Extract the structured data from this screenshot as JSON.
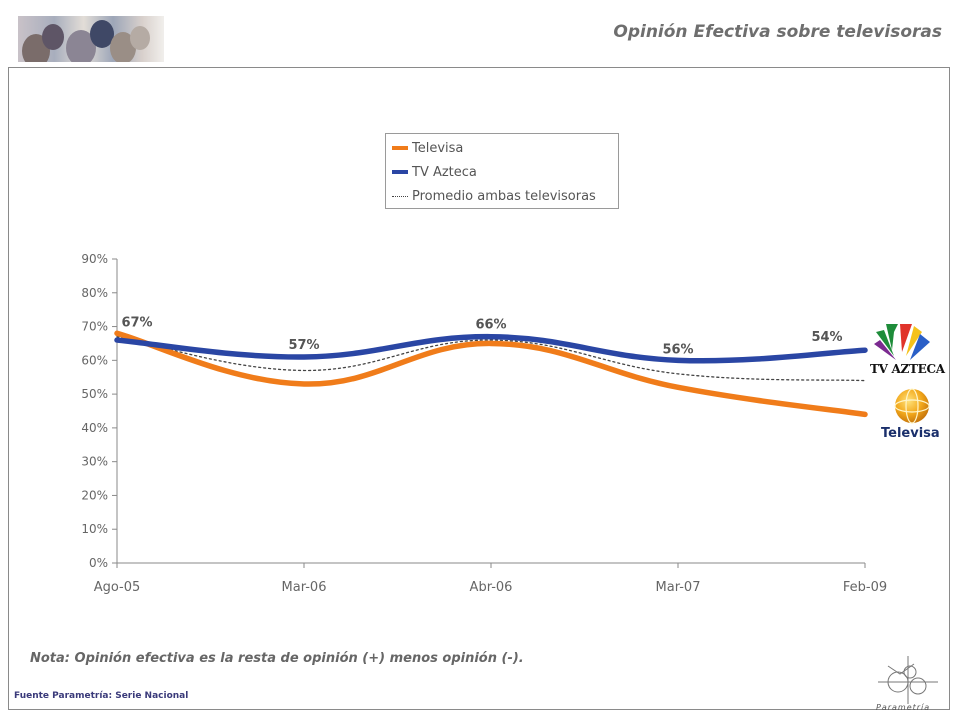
{
  "header": {
    "title": "Opinión Efectiva sobre televisoras"
  },
  "chart_data": {
    "type": "line",
    "x": [
      "Ago-05",
      "Mar-06",
      "Abr-06",
      "Mar-07",
      "Feb-09"
    ],
    "yticks": [
      "0%",
      "10%",
      "20%",
      "30%",
      "40%",
      "50%",
      "60%",
      "70%",
      "80%",
      "90%"
    ],
    "ylim": [
      0,
      90
    ],
    "series": [
      {
        "name": "Televisa",
        "values": [
          68,
          53,
          65,
          52,
          44
        ],
        "color": "#f07c1a",
        "style": "solid"
      },
      {
        "name": "TV Azteca",
        "values": [
          66,
          61,
          67,
          60,
          63
        ],
        "color": "#2a46a4",
        "style": "solid"
      },
      {
        "name": "Promedio ambas televisoras",
        "values": [
          67,
          57,
          66,
          56,
          54
        ],
        "color": "#444444",
        "style": "dotted"
      }
    ],
    "data_labels": [
      "67%",
      "57%",
      "66%",
      "56%",
      "54%"
    ],
    "legend_position": "top-center",
    "grid": false
  },
  "footer": {
    "note": "Nota: Opinión efectiva es la resta de opinión (+) menos opinión (-).",
    "source": "Fuente Parametría: Serie Nacional",
    "brand": "Parametría"
  },
  "logos": {
    "azteca_text": "TV AZTECA",
    "televisa_text": "Televisa"
  },
  "icons": {
    "banner": "people-photo-banner",
    "azteca": "tv-azteca-logo-icon",
    "televisa": "televisa-logo-icon",
    "parametria": "parametria-logo-icon"
  }
}
